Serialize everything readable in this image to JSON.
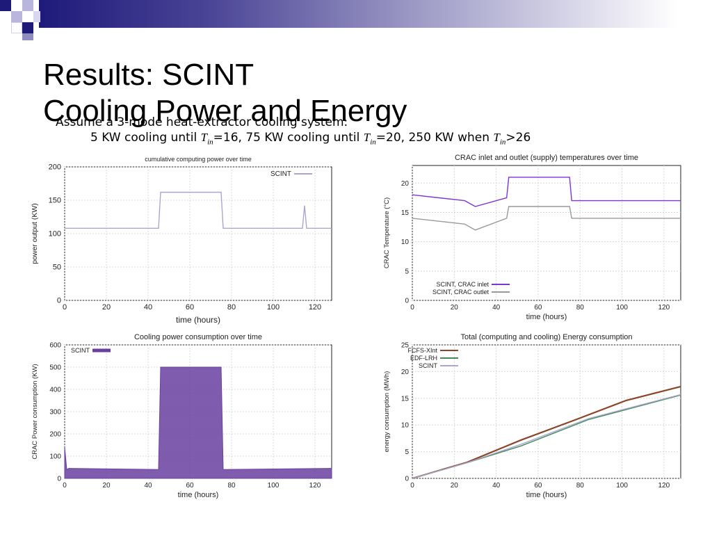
{
  "slide": {
    "title_line1": "Results: SCINT",
    "title_line2": "Cooling Power and Energy",
    "bullet1": "Assume a 3-mode heat-extractor cooling system:",
    "bullet2_a": "5 KW cooling until ",
    "bullet2_b": "=16, 75 KW cooling until ",
    "bullet2_c": "=20, 250 KW when ",
    "bullet2_d": ">26",
    "var_T": "T",
    "var_in": "in"
  },
  "colors": {
    "header_dark": "#1e1a7a",
    "scint_light": "#a9a6cf",
    "scint_purple": "#7d33d6",
    "cooling_fill": "#6a3fa0",
    "fcfs": "#8b4526",
    "edf": "#3f8a55"
  },
  "chart_data": [
    {
      "type": "line",
      "title": "cumulative computing power over time",
      "xlabel": "time (hours)",
      "ylabel": "power output (KW)",
      "xlim": [
        0,
        128
      ],
      "ylim": [
        0,
        200
      ],
      "xticks": [
        "0",
        "20",
        "40",
        "60",
        "80",
        "100",
        "120"
      ],
      "yticks": [
        "0",
        "50",
        "100",
        "150",
        "200"
      ],
      "legend": "top-right",
      "series": [
        {
          "name": "SCINT",
          "x": [
            0,
            45,
            46,
            75,
            76,
            114,
            115,
            116,
            128
          ],
          "y": [
            108,
            108,
            162,
            162,
            108,
            108,
            142,
            108,
            108
          ]
        }
      ]
    },
    {
      "type": "line",
      "title": "CRAC inlet and outlet (supply) temperatures over time",
      "xlabel": "time (hours)",
      "ylabel": "CRAC Temperature (°C)",
      "xlim": [
        0,
        128
      ],
      "ylim": [
        0,
        23
      ],
      "xticks": [
        "0",
        "20",
        "40",
        "60",
        "80",
        "100",
        "120"
      ],
      "yticks": [
        "0",
        "5",
        "10",
        "15",
        "20"
      ],
      "legend": "bottom-left",
      "series": [
        {
          "name": "SCINT, CRAC inlet",
          "x": [
            0,
            25,
            30,
            45,
            46,
            75,
            76,
            128
          ],
          "y": [
            18,
            17,
            16,
            17.5,
            21,
            21,
            17,
            17
          ]
        },
        {
          "name": "SCINT, CRAC outlet",
          "x": [
            0,
            25,
            30,
            45,
            46,
            75,
            76,
            128
          ],
          "y": [
            14,
            13,
            12,
            14,
            16,
            16,
            14,
            14
          ]
        }
      ]
    },
    {
      "type": "area",
      "title": "Cooling power consumption over time",
      "xlabel": "time (hours)",
      "ylabel": "CRAC Power consumption (KW)",
      "xlim": [
        0,
        128
      ],
      "ylim": [
        0,
        600
      ],
      "xticks": [
        "0",
        "20",
        "40",
        "60",
        "80",
        "100",
        "120"
      ],
      "yticks": [
        "0",
        "100",
        "200",
        "300",
        "400",
        "500",
        "600"
      ],
      "legend": "top-left",
      "series": [
        {
          "name": "SCINT",
          "x": [
            0,
            1,
            2,
            45,
            46,
            75,
            76,
            128
          ],
          "y": [
            140,
            40,
            45,
            40,
            500,
            500,
            40,
            45
          ]
        }
      ]
    },
    {
      "type": "line",
      "title": "Total (computing and cooling) Energy consumption",
      "xlabel": "time (hours)",
      "ylabel": "energy consumption (MWh)",
      "xlim": [
        0,
        128
      ],
      "ylim": [
        0,
        25
      ],
      "xticks": [
        "0",
        "20",
        "40",
        "60",
        "80",
        "100",
        "120"
      ],
      "yticks": [
        "0",
        "5",
        "10",
        "15",
        "20",
        "25"
      ],
      "legend": "top-left",
      "series": [
        {
          "name": "FCFS-XInt",
          "x": [
            0,
            26,
            52,
            78,
            102,
            128
          ],
          "y": [
            0,
            3.0,
            7.2,
            11.0,
            14.6,
            17.2
          ]
        },
        {
          "name": "EDF-LRH",
          "x": [
            0,
            26,
            52,
            84,
            128
          ],
          "y": [
            0,
            2.9,
            6.1,
            11.0,
            15.6
          ]
        },
        {
          "name": "SCINT",
          "x": [
            0,
            26,
            52,
            84,
            128
          ],
          "y": [
            0,
            2.9,
            6.4,
            11.2,
            15.7
          ]
        }
      ]
    }
  ]
}
